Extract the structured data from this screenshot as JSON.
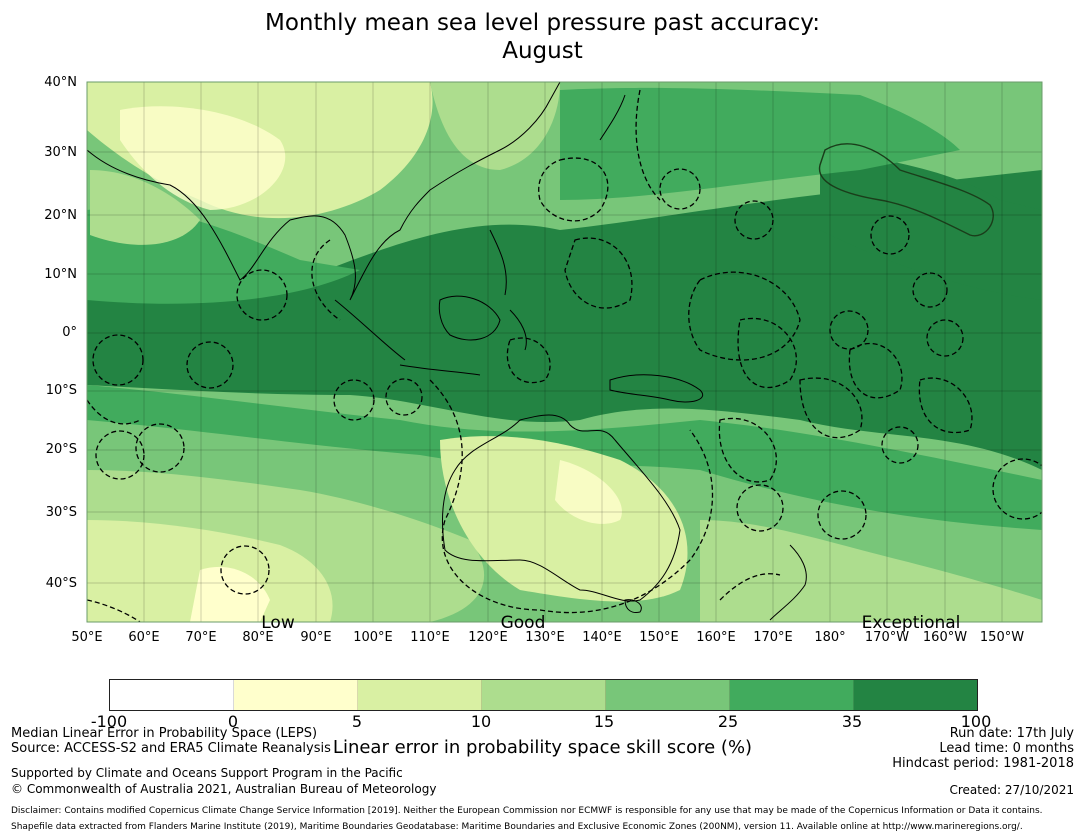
{
  "title": {
    "line1": "Monthly mean sea level pressure past accuracy:",
    "line2": "August"
  },
  "map": {
    "latitude_ticks": [
      "40°N",
      "30°N",
      "20°N",
      "10°N",
      "0°",
      "10°S",
      "20°S",
      "30°S",
      "40°S"
    ],
    "longitude_ticks": [
      "50°E",
      "60°E",
      "70°E",
      "80°E",
      "90°E",
      "100°E",
      "110°E",
      "120°E",
      "130°E",
      "140°E",
      "150°E",
      "160°E",
      "170°E",
      "180°",
      "170°W",
      "160°W",
      "150°W"
    ],
    "skill_level_labels": [
      "Low",
      "Good",
      "Exceptional"
    ],
    "colors": {
      "ocean_base": "#78c679",
      "coastline": "#000000",
      "boundary": "#000000"
    }
  },
  "colorbar": {
    "tick_labels": [
      "-100",
      "0",
      "5",
      "10",
      "15",
      "25",
      "35",
      "100"
    ],
    "colors": [
      "#ffffff",
      "#ffffcc",
      "#d9f0a3",
      "#addd8e",
      "#78c679",
      "#41ab5d",
      "#238443"
    ],
    "label": "Linear error in probability space skill score (%)"
  },
  "footer": {
    "metric": "Median Linear Error in Probability Space (LEPS)",
    "source": "Source: ACCESS-S2 and ERA5 Climate Reanalysis",
    "support": "Supported by Climate and Oceans Support Program in the Pacific",
    "copyright": "© Commonwealth of Australia 2021, Australian Bureau of Meteorology",
    "run_date": "Run date: 17th July",
    "lead_time": "Lead time: 0 months",
    "hindcast": "Hindcast period: 1981-2018",
    "created": "Created: 27/10/2021",
    "disclaimer": "Disclaimer: Contains modified Copernicus Climate Change Service Information [2019]. Neither the European Commission nor ECMWF is responsible for any use that may be made of the Copernicus Information or Data it contains.",
    "shapefile": "Shapefile data extracted from Flanders Marine Institute (2019), Maritime Boundaries Geodatabase: Maritime Boundaries and Exclusive Economic Zones (200NM), version 11. Available online at http://www.marineregions.org/."
  }
}
